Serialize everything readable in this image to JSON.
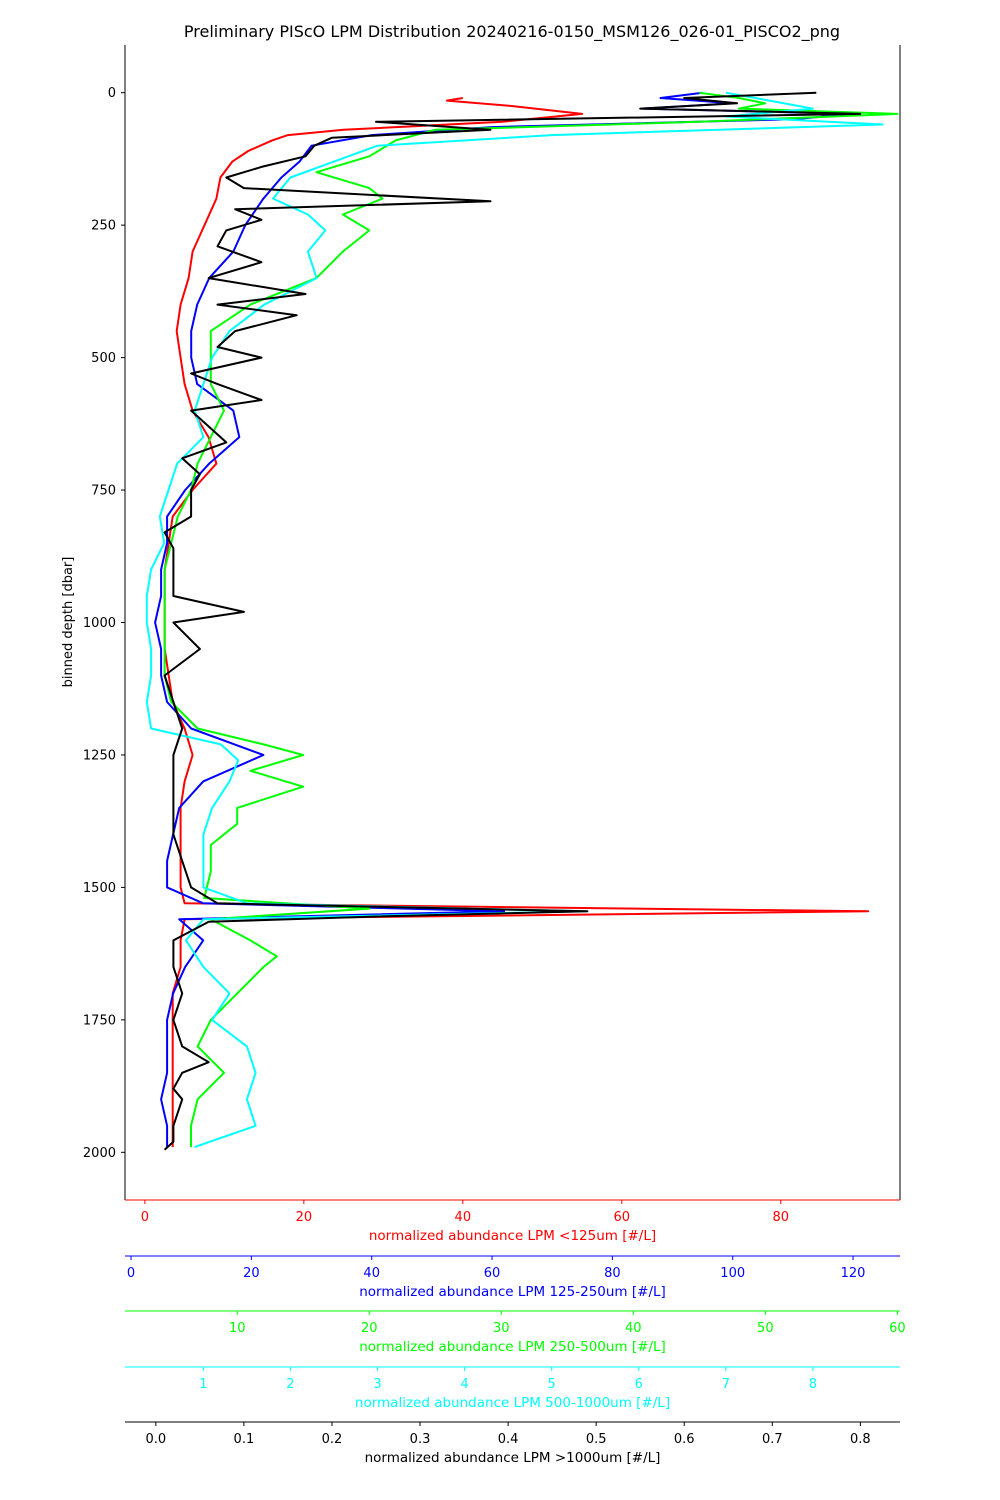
{
  "chart_data": {
    "type": "line",
    "title": "Preliminary PIScO LPM Distribution 20240216-0150_MSM126_026-01_PISCO2_png",
    "ylabel": "binned depth [dbar]",
    "ylim": [
      2090,
      -90
    ],
    "yticks": [
      0,
      250,
      500,
      750,
      1000,
      1250,
      1500,
      1750,
      2000
    ],
    "grid": false,
    "axes": [
      {
        "key": "lt125",
        "label": "normalized abundance LPM <125um [#/L]",
        "color": "#ff0000",
        "lim": [
          -2.5,
          95
        ],
        "ticks": [
          0,
          20,
          40,
          60,
          80
        ],
        "tick_labels": [
          "0",
          "20",
          "40",
          "60",
          "80"
        ]
      },
      {
        "key": "s125_250",
        "label": "normalized abundance LPM 125-250um [#/L]",
        "color": "#0000ff",
        "lim": [
          -1.0,
          127.8
        ],
        "ticks": [
          0,
          20,
          40,
          60,
          80,
          100,
          120
        ],
        "tick_labels": [
          "0",
          "20",
          "40",
          "60",
          "80",
          "100",
          "120"
        ]
      },
      {
        "key": "s250_500",
        "label": "normalized abundance LPM 250-500um [#/L]",
        "color": "#00ff00",
        "lim": [
          1.5,
          60.2
        ],
        "ticks": [
          10,
          20,
          30,
          40,
          50,
          60
        ],
        "tick_labels": [
          "10",
          "20",
          "30",
          "40",
          "50",
          "60"
        ]
      },
      {
        "key": "s500_1000",
        "label": "normalized abundance LPM 500-1000um [#/L]",
        "color": "#00ffff",
        "lim": [
          0.1,
          9.0
        ],
        "ticks": [
          1,
          2,
          3,
          4,
          5,
          6,
          7,
          8
        ],
        "tick_labels": [
          "1",
          "2",
          "3",
          "4",
          "5",
          "6",
          "7",
          "8"
        ]
      },
      {
        "key": "gt1000",
        "label": "normalized abundance LPM >1000um [#/L]",
        "color": "#000000",
        "lim": [
          -0.035,
          0.845
        ],
        "ticks": [
          0.0,
          0.1,
          0.2,
          0.3,
          0.4,
          0.5,
          0.6,
          0.7,
          0.8
        ],
        "tick_labels": [
          "0.0",
          "0.1",
          "0.2",
          "0.3",
          "0.4",
          "0.5",
          "0.6",
          "0.7",
          "0.8"
        ]
      }
    ],
    "series": [
      {
        "axis": "lt125",
        "color": "#ff0000",
        "depth": [
          10,
          15,
          25,
          40,
          55,
          70,
          80,
          90,
          110,
          130,
          160,
          200,
          250,
          300,
          350,
          400,
          450,
          500,
          550,
          600,
          650,
          700,
          750,
          800,
          850,
          900,
          950,
          1000,
          1050,
          1100,
          1150,
          1200,
          1250,
          1300,
          1350,
          1400,
          1450,
          1500,
          1530,
          1545,
          1560,
          1600,
          1650,
          1700,
          1750,
          1800,
          1850,
          1900,
          1950,
          1990
        ],
        "values": [
          40,
          38,
          46,
          55,
          45,
          25,
          18,
          16,
          13,
          11,
          9.5,
          9,
          7.5,
          6,
          5.5,
          4.5,
          4,
          4.5,
          5,
          6,
          8,
          9,
          6,
          3.5,
          3,
          2.5,
          2.5,
          2.5,
          2.5,
          3,
          3.5,
          5,
          6,
          5,
          4.5,
          4.5,
          4.5,
          4.5,
          5,
          91,
          5,
          4.5,
          4.5,
          3.5,
          3.5,
          3.5,
          3.5,
          3.5,
          3.5,
          3.5
        ]
      },
      {
        "axis": "s125_250",
        "color": "#0000ff",
        "depth": [
          0,
          10,
          20,
          30,
          40,
          50,
          65,
          80,
          100,
          130,
          160,
          200,
          250,
          300,
          350,
          400,
          450,
          500,
          550,
          600,
          650,
          700,
          750,
          800,
          850,
          900,
          950,
          1000,
          1050,
          1100,
          1150,
          1200,
          1250,
          1300,
          1350,
          1400,
          1450,
          1500,
          1530,
          1545,
          1560,
          1600,
          1650,
          1700,
          1750,
          1800,
          1850,
          1900,
          1950,
          1990
        ],
        "values": [
          95,
          88,
          100,
          85,
          120,
          110,
          60,
          40,
          30,
          28,
          25,
          22,
          19,
          17,
          13,
          11,
          10,
          10,
          11,
          17,
          18,
          13,
          9,
          6,
          6,
          5,
          5,
          4,
          5,
          5,
          6,
          10,
          22,
          12,
          8,
          7,
          6,
          6,
          12,
          62,
          8,
          12,
          9,
          7,
          6,
          6,
          6,
          5,
          6,
          6
        ]
      },
      {
        "axis": "s250_500",
        "color": "#00ff00",
        "depth": [
          0,
          10,
          20,
          30,
          40,
          55,
          70,
          90,
          120,
          150,
          180,
          200,
          230,
          260,
          300,
          350,
          400,
          450,
          500,
          550,
          600,
          650,
          700,
          750,
          800,
          850,
          900,
          950,
          1000,
          1050,
          1100,
          1150,
          1200,
          1230,
          1250,
          1280,
          1310,
          1350,
          1380,
          1420,
          1470,
          1520,
          1540,
          1560,
          1600,
          1630,
          1650,
          1700,
          1750,
          1800,
          1850,
          1900,
          1950,
          1990
        ],
        "values": [
          45,
          48,
          50,
          48,
          60,
          45,
          25,
          22,
          20,
          16,
          20,
          21,
          18,
          20,
          18,
          16,
          11,
          8,
          8,
          8,
          9,
          8,
          7,
          6.5,
          5.5,
          5,
          4.5,
          4.5,
          4.5,
          4.5,
          4.5,
          5,
          7,
          12,
          15,
          11,
          15,
          10,
          10,
          8,
          8,
          7.5,
          20,
          8,
          11,
          13,
          12,
          10,
          8,
          7,
          9,
          7,
          6.5,
          6.5
        ]
      },
      {
        "axis": "s500_1000",
        "color": "#00ffff",
        "depth": [
          0,
          15,
          30,
          45,
          60,
          80,
          100,
          130,
          160,
          200,
          230,
          260,
          300,
          350,
          400,
          450,
          500,
          550,
          600,
          650,
          700,
          750,
          800,
          850,
          900,
          950,
          1000,
          1050,
          1100,
          1150,
          1200,
          1230,
          1260,
          1300,
          1350,
          1400,
          1450,
          1500,
          1530,
          1545,
          1560,
          1600,
          1650,
          1700,
          1750,
          1800,
          1850,
          1900,
          1950,
          1990
        ],
        "values": [
          7,
          7.5,
          8,
          7,
          8.8,
          5,
          3,
          2.5,
          2,
          1.8,
          2.2,
          2.4,
          2.2,
          2.3,
          1.7,
          1.3,
          1.1,
          1.0,
          0.9,
          1.0,
          0.7,
          0.6,
          0.5,
          0.55,
          0.4,
          0.35,
          0.35,
          0.4,
          0.4,
          0.35,
          0.4,
          1.2,
          1.4,
          1.3,
          1.1,
          1.0,
          1.0,
          1.0,
          1.5,
          5.4,
          1.0,
          0.8,
          1.0,
          1.3,
          1.1,
          1.5,
          1.6,
          1.5,
          1.6,
          0.9
        ]
      },
      {
        "axis": "gt1000",
        "color": "#000000",
        "depth": [
          0,
          10,
          20,
          30,
          40,
          55,
          70,
          85,
          100,
          120,
          140,
          160,
          180,
          205,
          220,
          240,
          260,
          290,
          320,
          350,
          380,
          400,
          420,
          450,
          480,
          500,
          530,
          550,
          580,
          600,
          630,
          660,
          690,
          720,
          750,
          780,
          800,
          830,
          860,
          900,
          950,
          980,
          1000,
          1050,
          1100,
          1150,
          1200,
          1250,
          1300,
          1350,
          1400,
          1450,
          1500,
          1530,
          1545,
          1555,
          1565,
          1600,
          1650,
          1700,
          1750,
          1800,
          1830,
          1850,
          1880,
          1900,
          1950,
          1980,
          1995
        ],
        "values": [
          0.75,
          0.6,
          0.66,
          0.55,
          0.8,
          0.25,
          0.38,
          0.2,
          0.18,
          0.17,
          0.12,
          0.08,
          0.1,
          0.38,
          0.09,
          0.12,
          0.08,
          0.07,
          0.12,
          0.06,
          0.17,
          0.07,
          0.16,
          0.09,
          0.07,
          0.12,
          0.04,
          0.07,
          0.12,
          0.04,
          0.06,
          0.08,
          0.03,
          0.05,
          0.04,
          0.04,
          0.04,
          0.01,
          0.02,
          0.02,
          0.02,
          0.1,
          0.02,
          0.05,
          0.01,
          0.02,
          0.03,
          0.02,
          0.02,
          0.02,
          0.02,
          0.03,
          0.04,
          0.07,
          0.49,
          0.25,
          0.06,
          0.02,
          0.02,
          0.03,
          0.02,
          0.03,
          0.06,
          0.03,
          0.02,
          0.03,
          0.02,
          0.02,
          0.01
        ]
      }
    ]
  }
}
